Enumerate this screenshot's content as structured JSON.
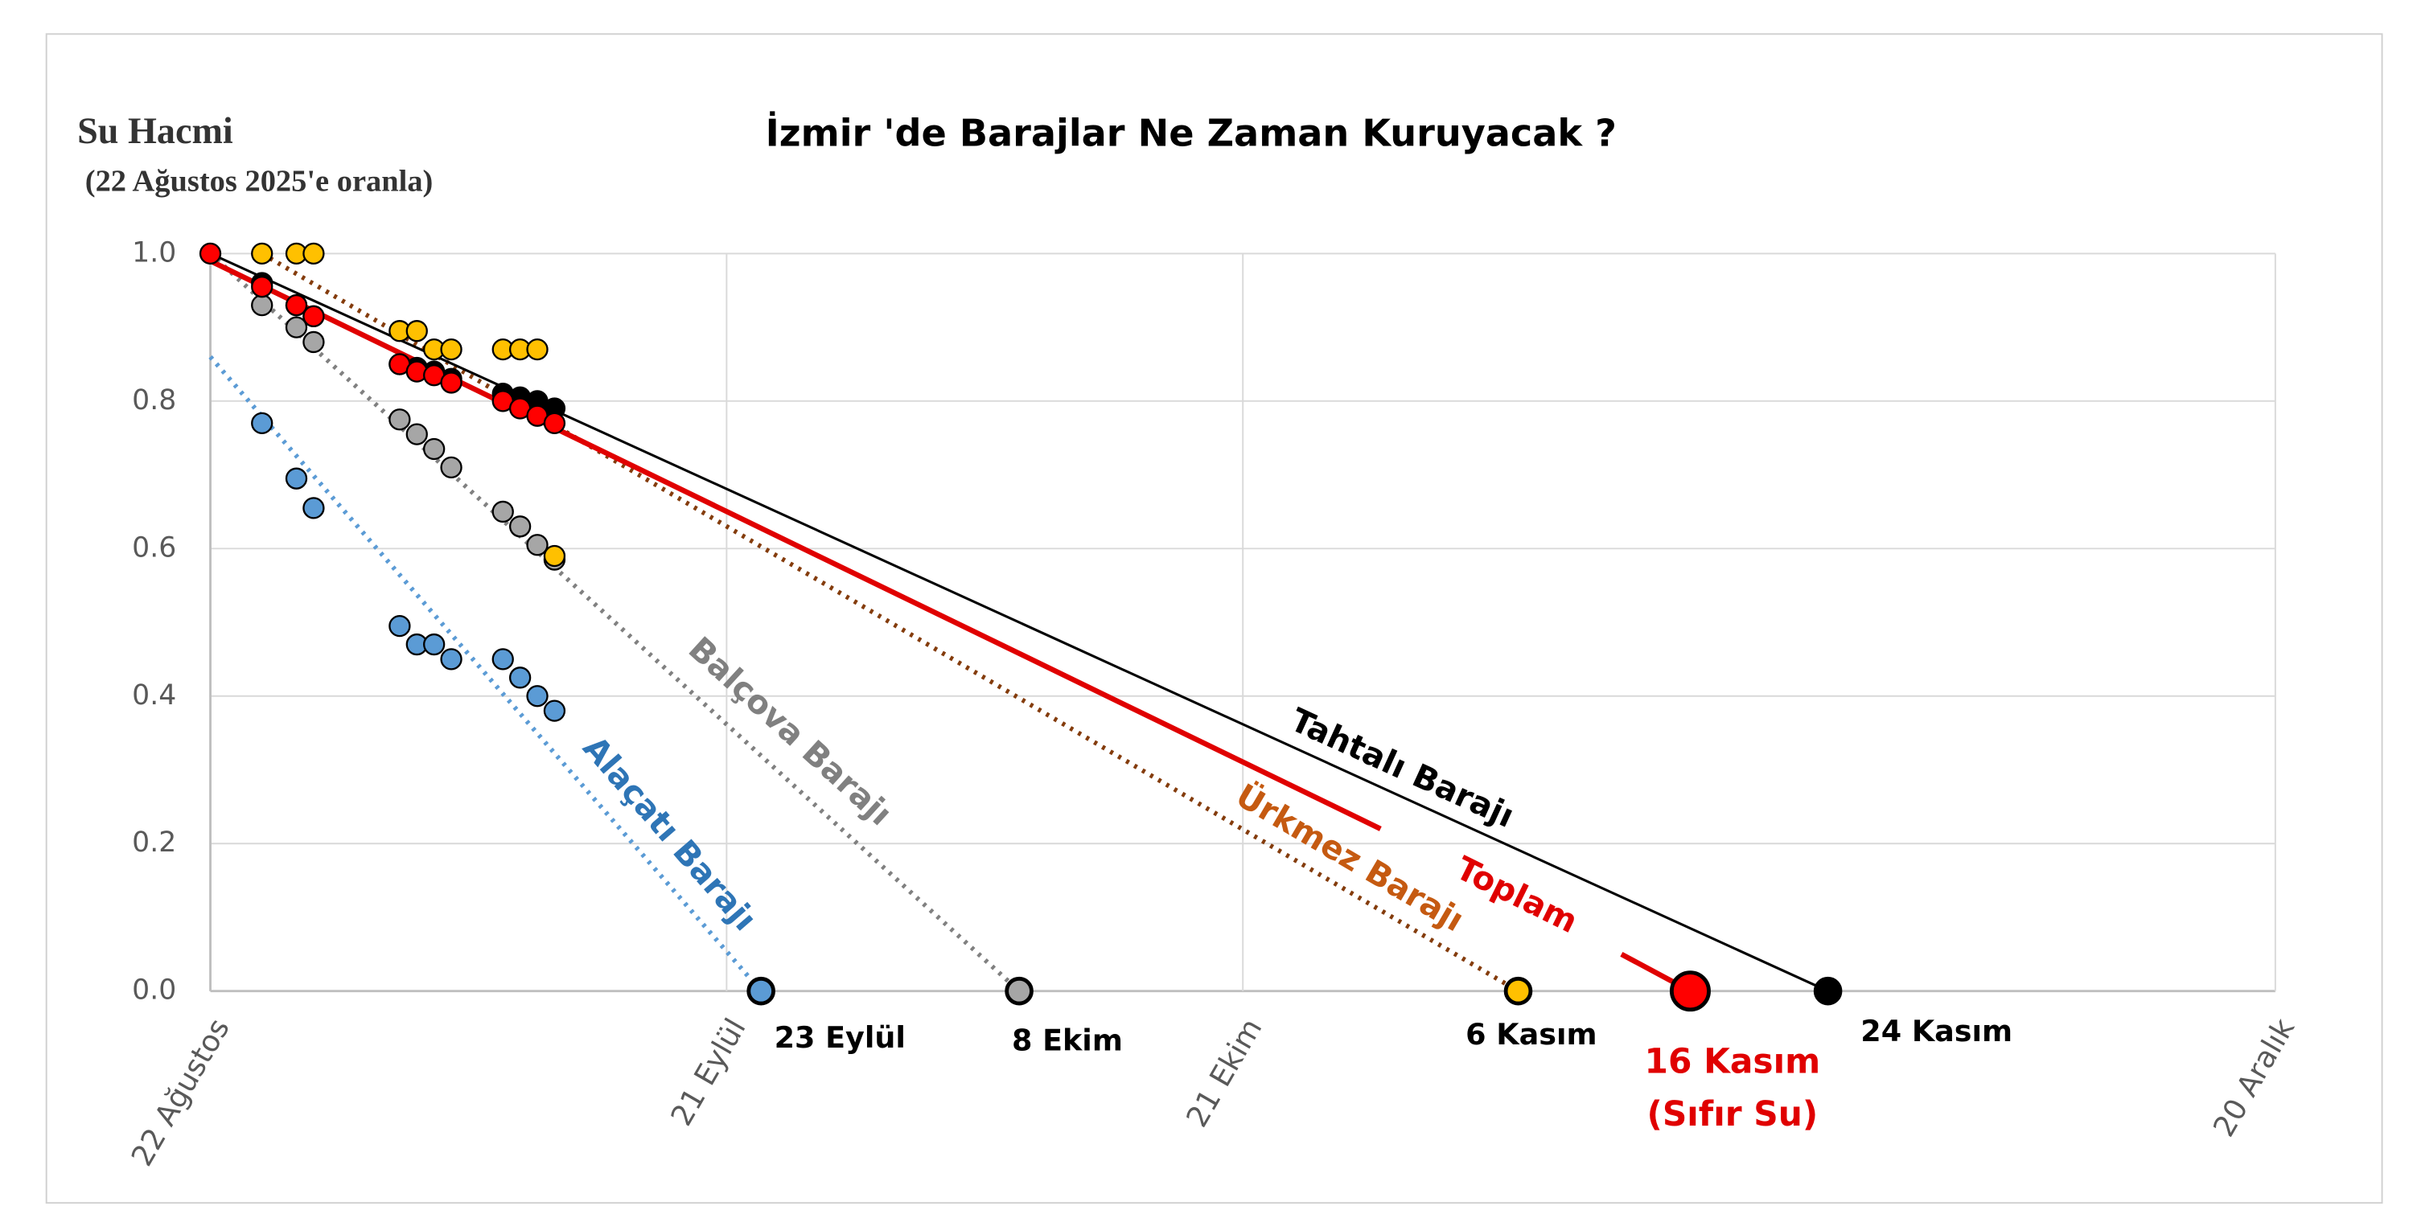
{
  "chart_data": {
    "type": "scatter",
    "title": "İzmir 'de Barajlar Ne Zaman Kuruyacak ?",
    "y_axis_label": "Su Hacmi",
    "subtitle": "(22 Ağustos 2025'e oranla)",
    "xlim": [
      0,
      120
    ],
    "xticks": [
      {
        "value": 0,
        "label": "22 Ağustos"
      },
      {
        "value": 30,
        "label": "21 Eylül"
      },
      {
        "value": 60,
        "label": "21 Ekim"
      },
      {
        "value": 120,
        "label": "20 Aralık"
      }
    ],
    "ylim": [
      0,
      1
    ],
    "yticks": [
      {
        "value": 0,
        "label": "0.0"
      },
      {
        "value": 0.2,
        "label": "0.2"
      },
      {
        "value": 0.4,
        "label": "0.4"
      },
      {
        "value": 0.6,
        "label": "0.6"
      },
      {
        "value": 0.8,
        "label": "0.8"
      },
      {
        "value": 1,
        "label": "1.0"
      }
    ],
    "grid": true,
    "series": [
      {
        "name": "Alaçatı Barajı",
        "color": "#5b9bd5",
        "line_color": "#5b9bd5",
        "label_color": "#2e75b6",
        "line_style": "dotted",
        "x": [
          3,
          5,
          6,
          11,
          12,
          13,
          14,
          17,
          18,
          19,
          20,
          32
        ],
        "values": [
          0.77,
          0.695,
          0.655,
          0.495,
          0.47,
          0.47,
          0.45,
          0.45,
          0.425,
          0.4,
          0.38,
          0
        ],
        "trend_x": [
          0,
          32
        ],
        "trend_y": [
          0.86,
          0
        ],
        "end_label": [
          "23 Eylül"
        ]
      },
      {
        "name": "Balçova Barajı",
        "color": "#a6a6a6",
        "line_color": "#808080",
        "label_color": "#808080",
        "line_style": "dotted",
        "x": [
          3,
          5,
          6,
          11,
          12,
          13,
          14,
          17,
          18,
          19,
          20,
          47
        ],
        "values": [
          0.93,
          0.9,
          0.88,
          0.775,
          0.755,
          0.735,
          0.71,
          0.65,
          0.63,
          0.605,
          0.585,
          0
        ],
        "trend_x": [
          0,
          47
        ],
        "trend_y": [
          1.0,
          0
        ],
        "end_label": [
          "8 Ekim"
        ]
      },
      {
        "name": "Ürkmez Barajı",
        "color": "#ffc000",
        "line_color": "#843c0c",
        "label_color": "#c55a11",
        "line_style": "dotted",
        "x": [
          3,
          5,
          6,
          11,
          12,
          13,
          14,
          17,
          18,
          19,
          20,
          76
        ],
        "values": [
          1.0,
          1.0,
          1.0,
          0.895,
          0.895,
          0.87,
          0.87,
          0.87,
          0.87,
          0.87,
          0.59,
          0
        ],
        "trend_x": [
          3,
          76
        ],
        "trend_y": [
          1.0,
          0
        ],
        "end_label": [
          "6 Kasım"
        ]
      },
      {
        "name": "Tahtalı Barajı",
        "color": "#000000",
        "line_color": "#000000",
        "label_color": "#000000",
        "line_style": "solid",
        "x": [
          3,
          5,
          6,
          11,
          12,
          13,
          14,
          17,
          18,
          19,
          20,
          94
        ],
        "values": [
          0.96,
          0.93,
          0.915,
          0.85,
          0.845,
          0.84,
          0.83,
          0.81,
          0.805,
          0.8,
          0.79,
          0
        ],
        "trend_x": [
          0,
          94
        ],
        "trend_y": [
          1.0,
          0
        ],
        "end_label": [
          "24 Kasım"
        ]
      },
      {
        "name": "Toplam",
        "color": "#ff0000",
        "line_color": "#e00000",
        "label_color": "#e00000",
        "line_style": "thick",
        "x": [
          0,
          3,
          5,
          6,
          11,
          12,
          13,
          14,
          17,
          18,
          19,
          20,
          86
        ],
        "values": [
          1.0,
          0.955,
          0.93,
          0.915,
          0.85,
          0.84,
          0.835,
          0.825,
          0.8,
          0.79,
          0.78,
          0.77,
          0
        ],
        "trend_x": [
          0,
          68,
          null,
          82,
          86
        ],
        "trend_y": [
          0.99,
          0.22,
          null,
          0.05,
          0
        ],
        "end_label": [
          "16 Kasım",
          "(Sıfır Su)"
        ]
      }
    ]
  }
}
